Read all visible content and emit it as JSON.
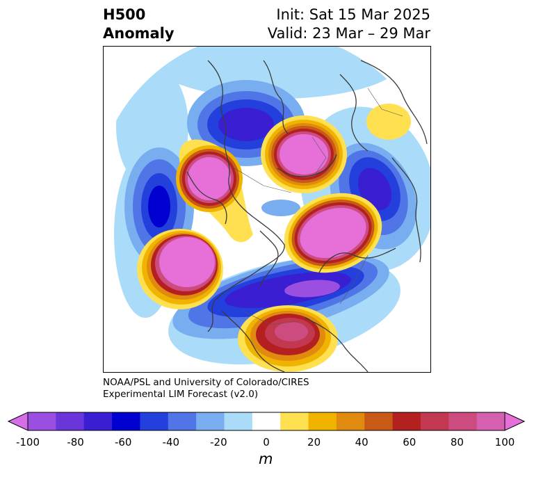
{
  "header": {
    "title_line1": "H500",
    "title_line2": "Anomaly",
    "init": "Init: Sat 15 Mar 2025",
    "valid": "Valid: 23 Mar – 29 Mar"
  },
  "credit": {
    "line1": "NOAA/PSL and University of Colorado/CIRES",
    "line2": "Experimental LIM Forecast (v2.0)"
  },
  "colorbar": {
    "unit": "m",
    "tick_labels": [
      "-100",
      "-80",
      "-60",
      "-40",
      "-20",
      "0",
      "20",
      "40",
      "60",
      "80",
      "100"
    ],
    "colors": [
      "#d66ee8",
      "#9a4fe0",
      "#6a35db",
      "#3a1fd2",
      "#0000d0",
      "#2340dc",
      "#4f75e6",
      "#78adf0",
      "#aadcfa",
      "#ffffff",
      "#ffe050",
      "#f0b400",
      "#e08a10",
      "#c85a18",
      "#b42020",
      "#c23850",
      "#cc4c80",
      "#d660b0",
      "#e670d8"
    ]
  }
}
